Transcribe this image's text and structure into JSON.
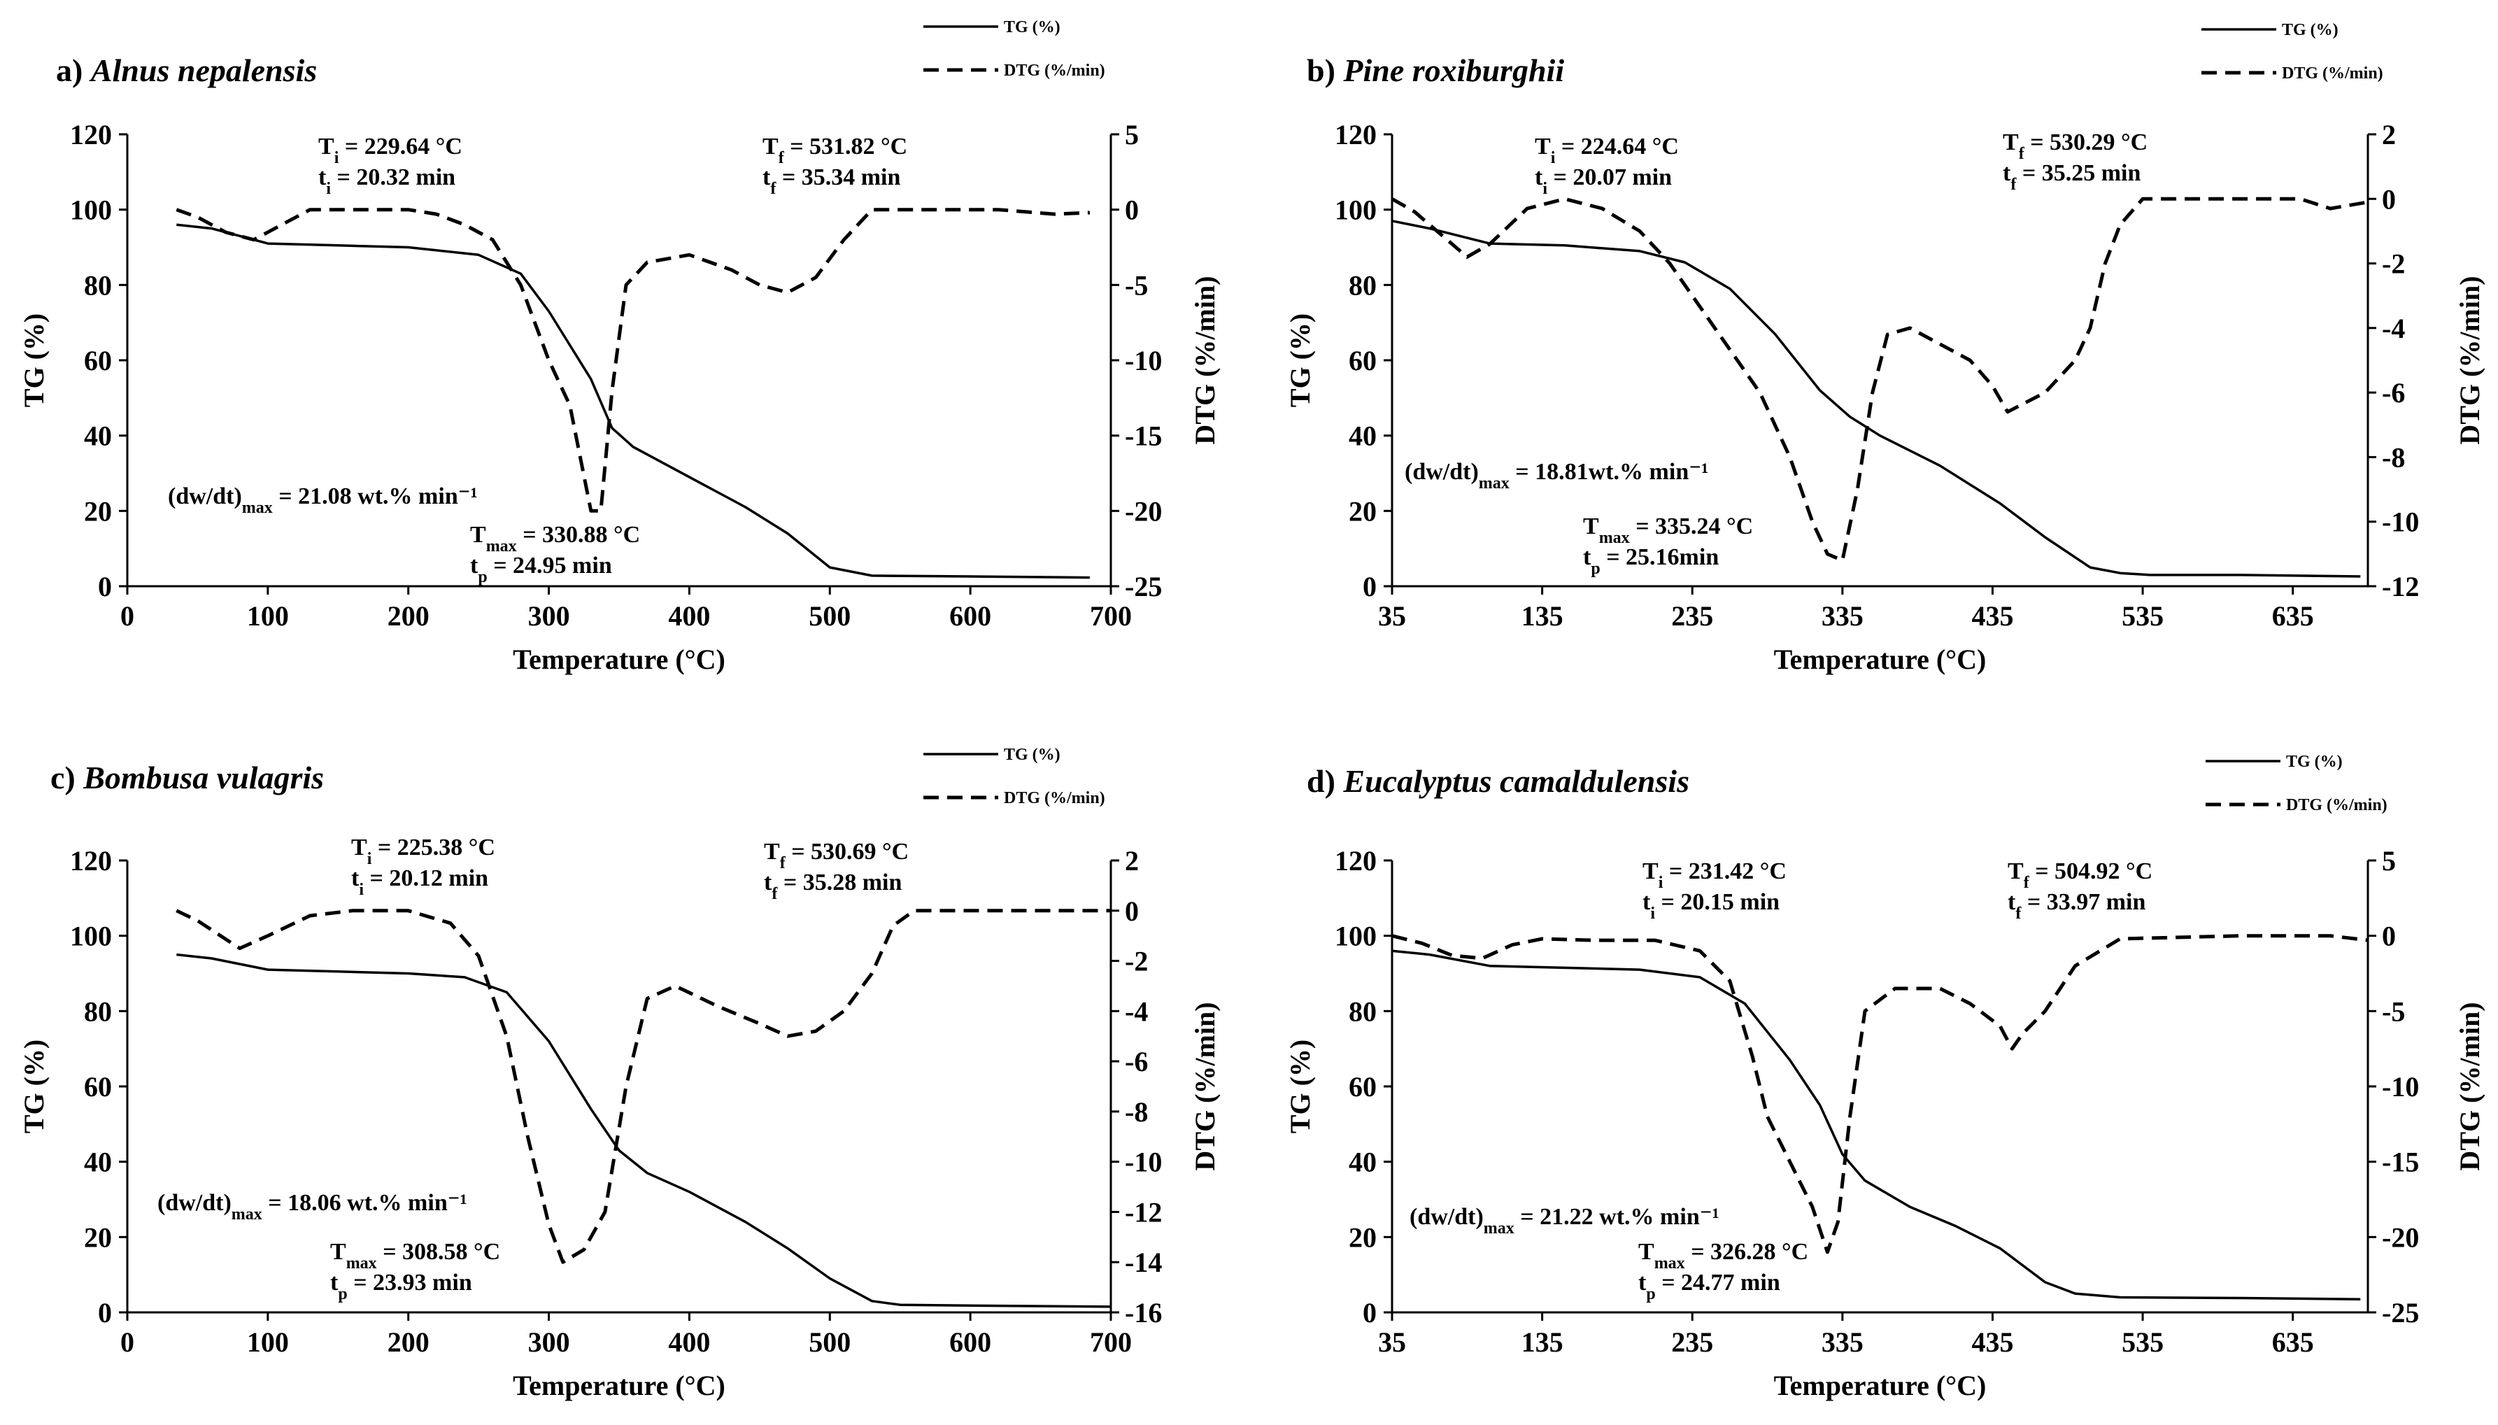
{
  "chart_data": [
    {
      "type": "line",
      "panel_label": "a)",
      "species": "Alnus nepalensis",
      "xlabel": "Temperature (°C)",
      "ylabel": "TG (%)",
      "y2label": "DTG (%/min)",
      "xlim": [
        0,
        700
      ],
      "xticks": [
        0,
        100,
        200,
        300,
        400,
        500,
        600,
        700
      ],
      "ylim": [
        0,
        120
      ],
      "yticks": [
        0,
        20,
        40,
        60,
        80,
        100,
        120
      ],
      "y2lim": [
        -25,
        5
      ],
      "y2ticks": [
        5,
        0,
        -5,
        -10,
        -15,
        -20,
        -25
      ],
      "legend": {
        "tg": "TG  (%)",
        "dtg": "DTG (%/min)"
      },
      "annotations": {
        "ti": {
          "T": "229.64 °C",
          "t": "20.32 min"
        },
        "tf": {
          "T": "531.82 °C",
          "t": "35.34 min"
        },
        "tmax": {
          "T": "330.88 °C",
          "t": "24.95 min"
        },
        "dwdt": "21.08 wt.% min⁻¹"
      },
      "series": [
        {
          "name": "TG",
          "axis": "left",
          "style": "solid",
          "x": [
            35,
            60,
            100,
            150,
            200,
            250,
            280,
            300,
            315,
            330,
            345,
            360,
            400,
            440,
            470,
            500,
            530,
            600,
            685
          ],
          "values": [
            96,
            95,
            91,
            90.5,
            90,
            88,
            83,
            73,
            64,
            55,
            42,
            37,
            29,
            21,
            14,
            5,
            2.8,
            2.6,
            2.3
          ]
        },
        {
          "name": "DTG",
          "axis": "right",
          "style": "dashed",
          "x": [
            35,
            50,
            70,
            90,
            110,
            130,
            160,
            200,
            220,
            240,
            260,
            280,
            300,
            315,
            330,
            337,
            345,
            355,
            370,
            400,
            430,
            450,
            470,
            490,
            510,
            530,
            560,
            620,
            660,
            685
          ],
          "values": [
            0,
            -0.5,
            -1.5,
            -2,
            -1,
            0,
            0,
            0,
            -0.3,
            -1,
            -2,
            -5,
            -10,
            -13,
            -20,
            -20,
            -12,
            -5,
            -3.5,
            -3,
            -4,
            -5,
            -5.5,
            -4.5,
            -2,
            0,
            0,
            0,
            -0.3,
            -0.2
          ]
        }
      ]
    },
    {
      "type": "line",
      "panel_label": "b)",
      "species": "Pine roxiburghii",
      "xlabel": "Temperature (°C)",
      "ylabel": "TG (%)",
      "y2label": "DTG (%/min)",
      "xlim": [
        35,
        685
      ],
      "xticks": [
        35,
        135,
        235,
        335,
        435,
        535,
        635
      ],
      "ylim": [
        0,
        120
      ],
      "yticks": [
        0,
        20,
        40,
        60,
        80,
        100,
        120
      ],
      "y2lim": [
        -12,
        2
      ],
      "y2ticks": [
        2,
        0,
        -2,
        -4,
        -6,
        -8,
        -10,
        -12
      ],
      "legend": {
        "tg": "TG (%)",
        "dtg": "DTG (%/min)"
      },
      "annotations": {
        "ti": {
          "T": "224.64 °C",
          "t": "20.07 min"
        },
        "tf": {
          "T": "530.29 °C",
          "t": "35.25 min"
        },
        "tmax": {
          "T": "335.24 °C",
          "t": "25.16min"
        },
        "dwdt": "18.81wt.% min⁻¹"
      },
      "series": [
        {
          "name": "TG",
          "axis": "left",
          "style": "solid",
          "x": [
            35,
            60,
            100,
            150,
            200,
            230,
            260,
            290,
            320,
            340,
            360,
            400,
            440,
            470,
            500,
            520,
            540,
            600,
            680
          ],
          "values": [
            97,
            95,
            91,
            90.5,
            89,
            86,
            79,
            67,
            52,
            45,
            40,
            32,
            22,
            13,
            5,
            3.5,
            3,
            3,
            2.6
          ]
        },
        {
          "name": "DTG",
          "axis": "right",
          "style": "dashed",
          "x": [
            35,
            50,
            70,
            85,
            100,
            125,
            150,
            175,
            200,
            220,
            250,
            280,
            300,
            315,
            325,
            335,
            345,
            355,
            365,
            380,
            400,
            420,
            435,
            445,
            470,
            490,
            500,
            510,
            520,
            535,
            560,
            640,
            660,
            685
          ],
          "values": [
            0,
            -0.4,
            -1.2,
            -1.8,
            -1.4,
            -0.3,
            0,
            -0.3,
            -1,
            -2,
            -4,
            -6,
            -8,
            -10,
            -11,
            -11.2,
            -9,
            -6,
            -4.2,
            -4,
            -4.5,
            -5,
            -5.8,
            -6.6,
            -6,
            -5,
            -4,
            -2,
            -0.8,
            0,
            0,
            0,
            -0.3,
            -0.1
          ]
        }
      ]
    },
    {
      "type": "line",
      "panel_label": "c)",
      "species": "Bombusa vulagris",
      "xlabel": "Temperature (°C)",
      "ylabel": "TG (%)",
      "y2label": "DTG (%/min)",
      "xlim": [
        0,
        700
      ],
      "xticks": [
        0,
        100,
        200,
        300,
        400,
        500,
        600,
        700
      ],
      "ylim": [
        0,
        120
      ],
      "yticks": [
        0,
        20,
        40,
        60,
        80,
        100,
        120
      ],
      "y2lim": [
        -16,
        2
      ],
      "y2ticks": [
        2,
        0,
        -2,
        -4,
        -6,
        -8,
        -10,
        -12,
        -14,
        -16
      ],
      "legend": {
        "tg": "TG (%)",
        "dtg": "DTG (%/min)"
      },
      "annotations": {
        "ti": {
          "T": "225.38 °C",
          "t": "20.12 min"
        },
        "tf": {
          "T": "530.69 °C",
          "t": "35.28 min"
        },
        "tmax": {
          "T": "308.58 °C",
          "t": "23.93 min"
        },
        "dwdt": "18.06 wt.% min⁻¹"
      },
      "series": [
        {
          "name": "TG",
          "axis": "left",
          "style": "solid",
          "x": [
            35,
            60,
            100,
            150,
            200,
            240,
            270,
            300,
            330,
            350,
            370,
            400,
            440,
            470,
            500,
            530,
            550,
            600,
            700
          ],
          "values": [
            95,
            94,
            91,
            90.5,
            90,
            89,
            85,
            72,
            54,
            43,
            37,
            32,
            24,
            17,
            9,
            3,
            2,
            1.8,
            1.5
          ]
        },
        {
          "name": "DTG",
          "axis": "right",
          "style": "dashed",
          "x": [
            35,
            50,
            80,
            100,
            130,
            160,
            200,
            230,
            250,
            270,
            285,
            300,
            310,
            325,
            340,
            355,
            370,
            390,
            420,
            450,
            470,
            490,
            510,
            530,
            545,
            560,
            600,
            700
          ],
          "values": [
            0,
            -0.4,
            -1.5,
            -1,
            -0.2,
            0,
            0,
            -0.5,
            -1.8,
            -5,
            -9,
            -12.5,
            -14,
            -13.5,
            -12,
            -7,
            -3.5,
            -3,
            -3.8,
            -4.5,
            -5,
            -4.8,
            -4,
            -2.5,
            -0.6,
            0,
            0,
            0
          ]
        }
      ]
    },
    {
      "type": "line",
      "panel_label": "d)",
      "species": "Eucalyptus camaldulensis",
      "xlabel": "Temperature (°C)",
      "ylabel": "TG (%)",
      "y2label": "DTG (%/min)",
      "xlim": [
        35,
        685
      ],
      "xticks": [
        35,
        135,
        235,
        335,
        435,
        535,
        635
      ],
      "ylim": [
        0,
        120
      ],
      "yticks": [
        0,
        20,
        40,
        60,
        80,
        100,
        120
      ],
      "y2lim": [
        -25,
        5
      ],
      "y2ticks": [
        5,
        0,
        -5,
        -10,
        -15,
        -20,
        -25
      ],
      "legend": {
        "tg": "TG (%)",
        "dtg": "DTG (%/min)"
      },
      "annotations": {
        "ti": {
          "T": "231.42 °C",
          "t": "20.15 min"
        },
        "tf": {
          "T": "504.92 °C",
          "t": "33.97 min"
        },
        "tmax": {
          "T": "326.28 °C",
          "t": "24.77 min"
        },
        "dwdt": "21.22 wt.% min⁻¹"
      },
      "series": [
        {
          "name": "TG",
          "axis": "left",
          "style": "solid",
          "x": [
            35,
            60,
            100,
            150,
            200,
            240,
            270,
            300,
            320,
            335,
            350,
            380,
            410,
            440,
            470,
            490,
            520,
            600,
            680
          ],
          "values": [
            96,
            95,
            92,
            91.5,
            91,
            89,
            82,
            67,
            55,
            42,
            35,
            28,
            23,
            17,
            8,
            5,
            4,
            3.8,
            3.5
          ]
        },
        {
          "name": "DTG",
          "axis": "right",
          "style": "dashed",
          "x": [
            35,
            55,
            75,
            95,
            115,
            135,
            170,
            210,
            240,
            260,
            275,
            285,
            300,
            315,
            325,
            332,
            340,
            350,
            370,
            400,
            420,
            440,
            448,
            455,
            470,
            490,
            520,
            600,
            660,
            685
          ],
          "values": [
            0,
            -0.5,
            -1.3,
            -1.5,
            -0.6,
            -0.2,
            -0.3,
            -0.3,
            -1,
            -3,
            -8,
            -12,
            -15,
            -18,
            -21,
            -19,
            -12,
            -5,
            -3.5,
            -3.5,
            -4.5,
            -6,
            -7.5,
            -6.5,
            -5,
            -2,
            -0.2,
            0,
            0,
            -0.3
          ]
        }
      ]
    }
  ]
}
